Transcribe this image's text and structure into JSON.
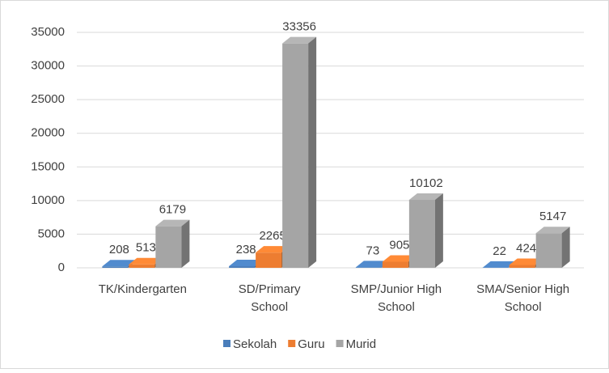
{
  "chart_data": {
    "type": "bar3d",
    "categories": [
      "TK/Kindergarten",
      "SD/Primary School",
      "SMP/Junior High School",
      "SMA/Senior High School"
    ],
    "series": [
      {
        "name": "Sekolah",
        "color": "#4a7ebb",
        "values": [
          208,
          238,
          73,
          22
        ]
      },
      {
        "name": "Guru",
        "color": "#ed7d31",
        "values": [
          513,
          2265,
          905,
          424
        ]
      },
      {
        "name": "Murid",
        "color": "#a5a5a5",
        "values": [
          6179,
          33356,
          10102,
          5147
        ]
      }
    ],
    "ylim": [
      0,
      35000
    ],
    "yticks": [
      0,
      5000,
      10000,
      15000,
      20000,
      25000,
      30000,
      35000
    ],
    "grid": true,
    "legend": "bottom"
  }
}
